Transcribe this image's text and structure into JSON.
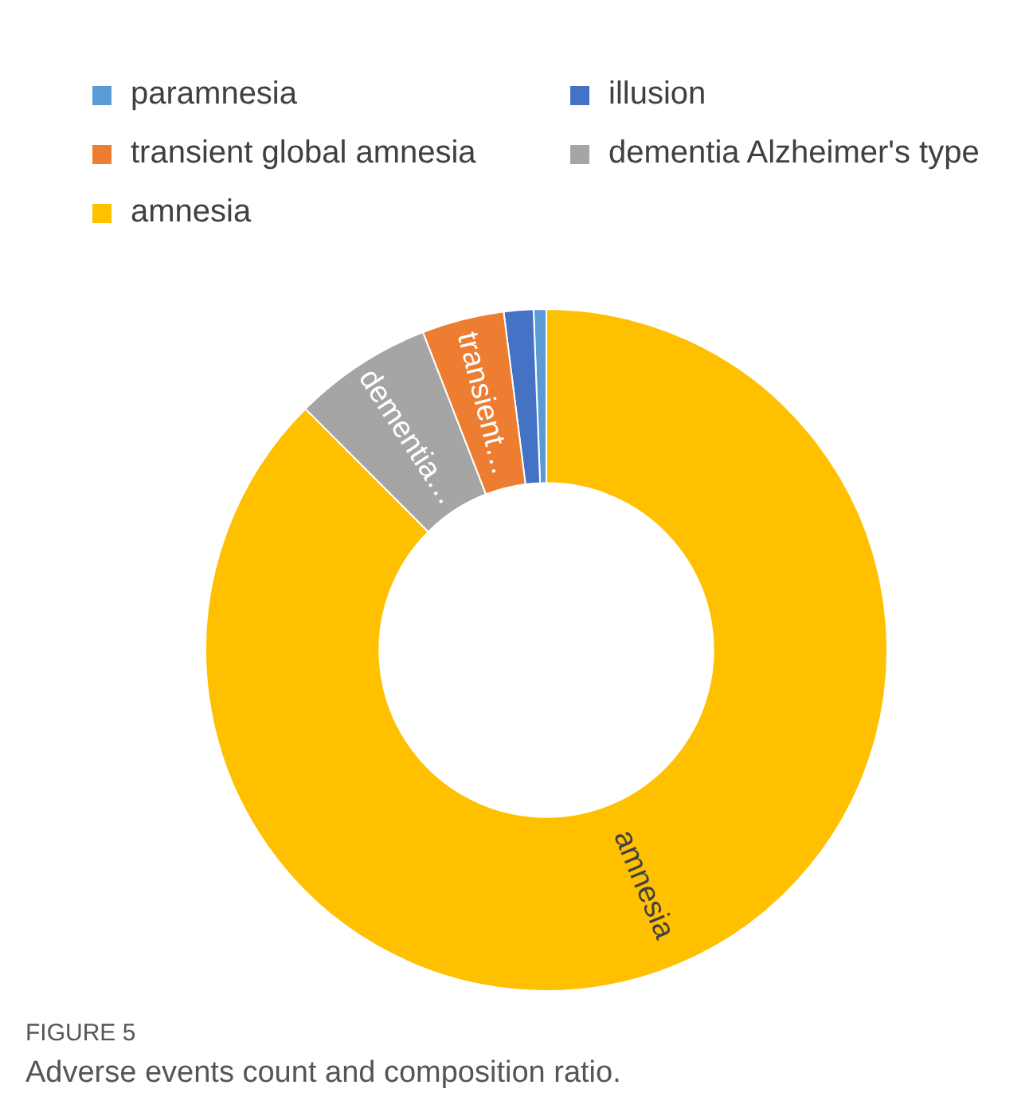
{
  "chart_data": {
    "type": "donut",
    "title": "FIGURE 5",
    "subtitle": "Adverse events count and composition ratio.",
    "categories": [
      "paramnesia",
      "illusion",
      "transient global amnesia",
      "dementia Alzheimer's type",
      "amnesia"
    ],
    "values": [
      0.6,
      1.4,
      3.9,
      6.6,
      87.5
    ],
    "colors": [
      "#5b9bd5",
      "#4472c4",
      "#ed7d31",
      "#a5a5a5",
      "#ffc000"
    ],
    "value_labels": [
      null,
      null,
      "transient…",
      "dementia…",
      "amnesia"
    ],
    "legend": "top"
  }
}
